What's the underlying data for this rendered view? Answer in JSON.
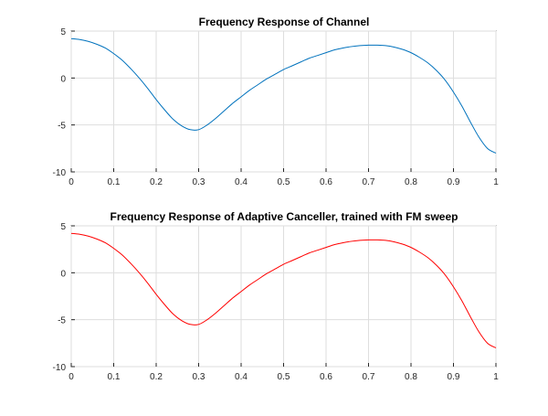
{
  "chart_data": [
    {
      "type": "line",
      "title": "Frequency Response of Channel",
      "xlabel": "",
      "ylabel": "",
      "xlim": [
        0,
        1
      ],
      "ylim": [
        -10,
        5
      ],
      "xticks": [
        0,
        0.1,
        0.2,
        0.3,
        0.4,
        0.5,
        0.6,
        0.7,
        0.8,
        0.9,
        1
      ],
      "xtick_labels": [
        "0",
        "0.1",
        "0.2",
        "0.3",
        "0.4",
        "0.5",
        "0.6",
        "0.7",
        "0.8",
        "0.9",
        "1"
      ],
      "yticks": [
        -10,
        -5,
        0,
        5
      ],
      "ytick_labels": [
        "-10",
        "-5",
        "0",
        "5"
      ],
      "grid": true,
      "series": [
        {
          "color": "#0072bd",
          "x": [
            0,
            0.02,
            0.04,
            0.06,
            0.08,
            0.1,
            0.12,
            0.14,
            0.16,
            0.18,
            0.2,
            0.22,
            0.24,
            0.26,
            0.28,
            0.3,
            0.32,
            0.34,
            0.36,
            0.38,
            0.4,
            0.42,
            0.44,
            0.46,
            0.48,
            0.5,
            0.52,
            0.54,
            0.56,
            0.58,
            0.6,
            0.62,
            0.64,
            0.66,
            0.68,
            0.7,
            0.72,
            0.74,
            0.76,
            0.78,
            0.8,
            0.82,
            0.84,
            0.86,
            0.88,
            0.9,
            0.92,
            0.94,
            0.96,
            0.98,
            1
          ],
          "y": [
            4.2,
            4.1,
            3.9,
            3.6,
            3.2,
            2.6,
            1.9,
            1.0,
            0.0,
            -1.1,
            -2.3,
            -3.4,
            -4.4,
            -5.1,
            -5.5,
            -5.5,
            -5.0,
            -4.3,
            -3.5,
            -2.7,
            -2.0,
            -1.3,
            -0.7,
            -0.1,
            0.4,
            0.9,
            1.3,
            1.7,
            2.1,
            2.4,
            2.7,
            3.0,
            3.2,
            3.35,
            3.45,
            3.5,
            3.5,
            3.45,
            3.3,
            3.05,
            2.7,
            2.2,
            1.6,
            0.8,
            -0.2,
            -1.5,
            -3.0,
            -4.7,
            -6.3,
            -7.5,
            -8.0
          ]
        }
      ]
    },
    {
      "type": "line",
      "title": "Frequency Response of Adaptive Canceller, trained with FM sweep",
      "xlabel": "",
      "ylabel": "",
      "xlim": [
        0,
        1
      ],
      "ylim": [
        -10,
        5
      ],
      "xticks": [
        0,
        0.1,
        0.2,
        0.3,
        0.4,
        0.5,
        0.6,
        0.7,
        0.8,
        0.9,
        1
      ],
      "xtick_labels": [
        "0",
        "0.1",
        "0.2",
        "0.3",
        "0.4",
        "0.5",
        "0.6",
        "0.7",
        "0.8",
        "0.9",
        "1"
      ],
      "yticks": [
        -10,
        -5,
        0,
        5
      ],
      "ytick_labels": [
        "-10",
        "-5",
        "0",
        "5"
      ],
      "grid": true,
      "series": [
        {
          "color": "#ff0000",
          "x": [
            0,
            0.02,
            0.04,
            0.06,
            0.08,
            0.1,
            0.12,
            0.14,
            0.16,
            0.18,
            0.2,
            0.22,
            0.24,
            0.26,
            0.28,
            0.3,
            0.32,
            0.34,
            0.36,
            0.38,
            0.4,
            0.42,
            0.44,
            0.46,
            0.48,
            0.5,
            0.52,
            0.54,
            0.56,
            0.58,
            0.6,
            0.62,
            0.64,
            0.66,
            0.68,
            0.7,
            0.72,
            0.74,
            0.76,
            0.78,
            0.8,
            0.82,
            0.84,
            0.86,
            0.88,
            0.9,
            0.92,
            0.94,
            0.96,
            0.98,
            1
          ],
          "y": [
            4.2,
            4.1,
            3.9,
            3.6,
            3.2,
            2.6,
            1.9,
            1.0,
            0.0,
            -1.1,
            -2.3,
            -3.4,
            -4.4,
            -5.1,
            -5.5,
            -5.5,
            -5.0,
            -4.3,
            -3.5,
            -2.7,
            -2.0,
            -1.3,
            -0.7,
            -0.1,
            0.4,
            0.9,
            1.3,
            1.7,
            2.1,
            2.4,
            2.7,
            3.0,
            3.2,
            3.35,
            3.45,
            3.5,
            3.5,
            3.45,
            3.3,
            3.05,
            2.7,
            2.2,
            1.6,
            0.8,
            -0.2,
            -1.5,
            -3.0,
            -4.7,
            -6.3,
            -7.5,
            -8.0
          ]
        }
      ]
    }
  ]
}
